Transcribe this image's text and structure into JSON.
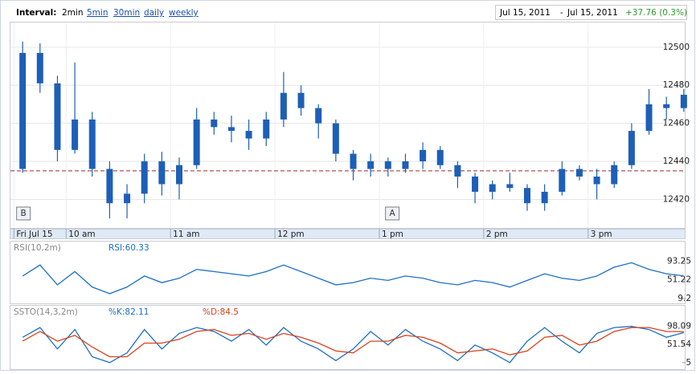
{
  "toolbar": {
    "interval_label": "Interval:",
    "intervals": [
      "2min",
      "5min",
      "30min",
      "daily",
      "weekly"
    ],
    "date_from": "Jul 15, 2011",
    "date_sep": "-",
    "date_to": "Jul 15, 2011",
    "change": "+37.76 (0.3%)"
  },
  "chart_data": [
    {
      "type": "candlestick",
      "x": [
        5,
        15,
        25,
        35,
        45,
        55,
        65,
        75,
        85,
        95,
        105,
        115,
        125,
        135,
        145,
        155,
        165,
        175,
        185,
        195,
        205,
        215,
        225,
        235,
        245,
        255,
        265,
        275,
        285,
        295,
        305,
        315,
        325,
        335,
        345,
        355,
        365,
        375,
        385
      ],
      "open": [
        12436,
        12497,
        12481,
        12446,
        12462,
        12436,
        12418,
        12423,
        12440,
        12428,
        12438,
        12462,
        12458,
        12456,
        12452,
        12462,
        12476,
        12468,
        12460,
        12444,
        12436,
        12440,
        12436,
        12440,
        12446,
        12438,
        12432,
        12424,
        12428,
        12426,
        12418,
        12424,
        12436,
        12432,
        12428,
        12438,
        12456,
        12470,
        12468
      ],
      "high": [
        12503,
        12502,
        12485,
        12492,
        12466,
        12440,
        12428,
        12444,
        12445,
        12442,
        12468,
        12466,
        12464,
        12462,
        12466,
        12487,
        12480,
        12470,
        12462,
        12446,
        12444,
        12442,
        12444,
        12450,
        12448,
        12440,
        12434,
        12430,
        12434,
        12428,
        12428,
        12440,
        12438,
        12436,
        12440,
        12460,
        12478,
        12474,
        12478
      ],
      "low": [
        12434,
        12476,
        12440,
        12444,
        12432,
        12410,
        12410,
        12418,
        12422,
        12420,
        12436,
        12454,
        12450,
        12446,
        12448,
        12458,
        12464,
        12452,
        12440,
        12430,
        12432,
        12432,
        12434,
        12436,
        12436,
        12426,
        12418,
        12420,
        12424,
        12414,
        12414,
        12422,
        12430,
        12420,
        12426,
        12436,
        12454,
        12462,
        12466
      ],
      "close": [
        12497,
        12481,
        12446,
        12462,
        12436,
        12418,
        12423,
        12440,
        12428,
        12438,
        12462,
        12458,
        12456,
        12452,
        12462,
        12476,
        12468,
        12460,
        12444,
        12436,
        12440,
        12436,
        12440,
        12446,
        12438,
        12432,
        12424,
        12428,
        12426,
        12418,
        12424,
        12436,
        12432,
        12428,
        12438,
        12456,
        12470,
        12468,
        12475
      ],
      "color": "#1d5fb8",
      "xlim": [
        -2,
        386
      ],
      "xticks": [
        {
          "value": 0,
          "label": "Fri Jul 15"
        },
        {
          "value": 30,
          "label": "10 am"
        },
        {
          "value": 90,
          "label": "11 am"
        },
        {
          "value": 150,
          "label": "12 pm"
        },
        {
          "value": 210,
          "label": "1 pm"
        },
        {
          "value": 270,
          "label": "2 pm"
        },
        {
          "value": 330,
          "label": "3 pm"
        }
      ],
      "ylim": [
        12405,
        12513
      ],
      "yticks": [
        12420,
        12440,
        12460,
        12480,
        12500
      ],
      "grid": true,
      "reference_line": 12435,
      "reference_color": "#9b2a2a",
      "annotations": [
        {
          "label": "B",
          "x": 2
        },
        {
          "label": "A",
          "x": 214
        }
      ]
    },
    {
      "type": "line",
      "title": "RSI(10,2m)",
      "x": [
        5,
        15,
        25,
        35,
        45,
        55,
        65,
        75,
        85,
        95,
        105,
        115,
        125,
        135,
        145,
        155,
        165,
        175,
        185,
        195,
        205,
        215,
        225,
        235,
        245,
        255,
        265,
        275,
        285,
        295,
        305,
        315,
        325,
        335,
        345,
        355,
        365,
        375,
        385
      ],
      "xlim": [
        -2,
        386
      ],
      "ylim": [
        -2,
        138
      ],
      "yticks": [
        9.2,
        51.22,
        93.25
      ],
      "series": [
        {
          "name": "RSI:60.33",
          "color": "#1d6fc4",
          "values": [
            60,
            85,
            40,
            70,
            35,
            20,
            35,
            60,
            45,
            55,
            75,
            70,
            65,
            60,
            70,
            85,
            70,
            55,
            40,
            45,
            55,
            50,
            60,
            55,
            45,
            40,
            50,
            45,
            35,
            50,
            65,
            55,
            50,
            60,
            80,
            90,
            75,
            65,
            60.33
          ]
        }
      ]
    },
    {
      "type": "line",
      "title": "SSTO(14,3,2m)",
      "x": [
        5,
        15,
        25,
        35,
        45,
        55,
        65,
        75,
        85,
        95,
        105,
        115,
        125,
        135,
        145,
        155,
        165,
        175,
        185,
        195,
        205,
        215,
        225,
        235,
        245,
        255,
        265,
        275,
        285,
        295,
        305,
        315,
        325,
        335,
        345,
        355,
        365,
        375,
        385
      ],
      "xlim": [
        -2,
        386
      ],
      "ylim": [
        -12,
        151
      ],
      "yticks": [
        5,
        51.54,
        98.09
      ],
      "series": [
        {
          "name": "%K:82.11",
          "color": "#1d6fc4",
          "values": [
            70,
            95,
            40,
            90,
            20,
            5,
            30,
            90,
            40,
            80,
            95,
            85,
            60,
            90,
            50,
            95,
            60,
            40,
            10,
            40,
            85,
            50,
            90,
            60,
            40,
            10,
            50,
            30,
            5,
            60,
            95,
            60,
            30,
            80,
            95,
            98,
            90,
            70,
            82.11
          ]
        },
        {
          "name": "%D:84.5",
          "color": "#d9421c",
          "values": [
            60,
            85,
            60,
            75,
            45,
            20,
            20,
            55,
            55,
            65,
            85,
            90,
            75,
            80,
            65,
            80,
            70,
            55,
            35,
            30,
            60,
            60,
            75,
            70,
            55,
            30,
            35,
            40,
            25,
            35,
            70,
            75,
            50,
            60,
            85,
            95,
            95,
            85,
            84.5
          ]
        }
      ]
    }
  ]
}
